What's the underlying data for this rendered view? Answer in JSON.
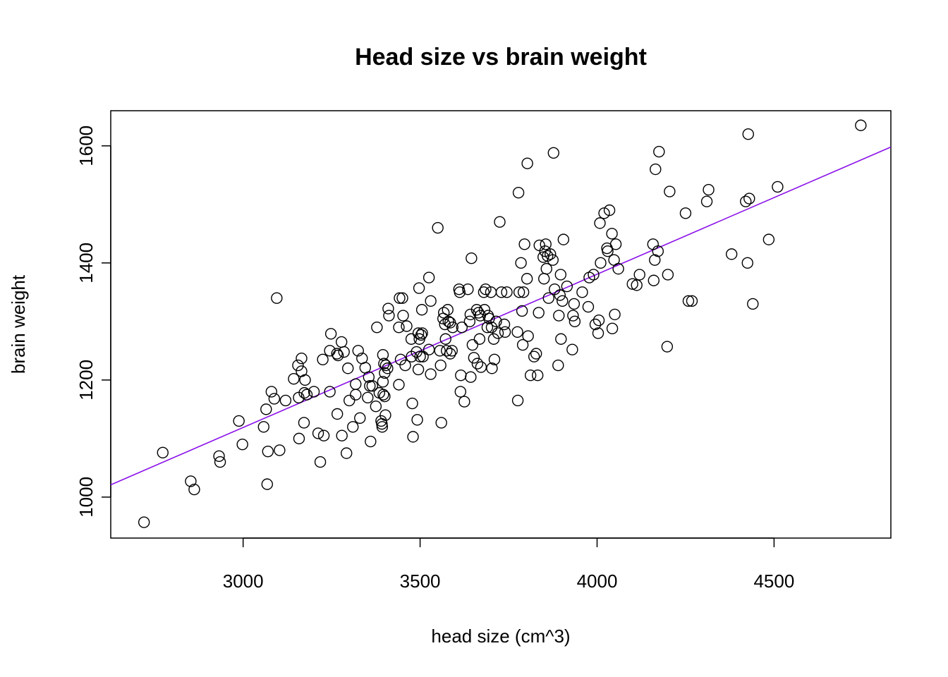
{
  "chart_data": {
    "type": "scatter",
    "title": "Head size vs brain weight",
    "xlabel": "head size (cm^3)",
    "ylabel": "brain weight",
    "xlim": [
      2626,
      4830
    ],
    "ylim": [
      930,
      1660
    ],
    "xticks": [
      3000,
      3500,
      4000,
      4500
    ],
    "yticks": [
      1000,
      1200,
      1400,
      1600
    ],
    "grid": false,
    "point_color": "#000000",
    "fit_line": {
      "color": "#8B10E8",
      "x": [
        2626,
        4830
      ],
      "y": [
        1021,
        1598
      ]
    },
    "points": [
      [
        2720,
        957
      ],
      [
        2773,
        1076
      ],
      [
        2852,
        1027
      ],
      [
        2862,
        1013
      ],
      [
        2932,
        1070
      ],
      [
        2935,
        1060
      ],
      [
        2988,
        1130
      ],
      [
        2998,
        1090
      ],
      [
        3058,
        1120
      ],
      [
        3065,
        1150
      ],
      [
        3068,
        1022
      ],
      [
        3070,
        1078
      ],
      [
        3080,
        1180
      ],
      [
        3088,
        1168
      ],
      [
        3095,
        1340
      ],
      [
        3103,
        1080
      ],
      [
        3120,
        1165
      ],
      [
        3143,
        1202
      ],
      [
        3155,
        1225
      ],
      [
        3157,
        1170
      ],
      [
        3158,
        1100
      ],
      [
        3165,
        1237
      ],
      [
        3165,
        1215
      ],
      [
        3172,
        1127
      ],
      [
        3173,
        1178
      ],
      [
        3175,
        1200
      ],
      [
        3180,
        1175
      ],
      [
        3200,
        1180
      ],
      [
        3212,
        1109
      ],
      [
        3218,
        1060
      ],
      [
        3225,
        1235
      ],
      [
        3228,
        1105
      ],
      [
        3245,
        1180
      ],
      [
        3245,
        1250
      ],
      [
        3248,
        1279
      ],
      [
        3265,
        1245
      ],
      [
        3266,
        1142
      ],
      [
        3268,
        1242
      ],
      [
        3278,
        1265
      ],
      [
        3279,
        1105
      ],
      [
        3285,
        1248
      ],
      [
        3292,
        1075
      ],
      [
        3296,
        1220
      ],
      [
        3300,
        1165
      ],
      [
        3310,
        1120
      ],
      [
        3318,
        1193
      ],
      [
        3318,
        1175
      ],
      [
        3325,
        1250
      ],
      [
        3330,
        1135
      ],
      [
        3336,
        1237
      ],
      [
        3345,
        1221
      ],
      [
        3352,
        1170
      ],
      [
        3355,
        1205
      ],
      [
        3358,
        1190
      ],
      [
        3360,
        1095
      ],
      [
        3365,
        1190
      ],
      [
        3375,
        1155
      ],
      [
        3378,
        1290
      ],
      [
        3385,
        1178
      ],
      [
        3390,
        1130
      ],
      [
        3392,
        1125
      ],
      [
        3393,
        1120
      ],
      [
        3395,
        1243
      ],
      [
        3395,
        1197
      ],
      [
        3396,
        1175
      ],
      [
        3398,
        1228
      ],
      [
        3400,
        1212
      ],
      [
        3400,
        1172
      ],
      [
        3402,
        1140
      ],
      [
        3403,
        1225
      ],
      [
        3408,
        1220
      ],
      [
        3410,
        1322
      ],
      [
        3412,
        1310
      ],
      [
        3440,
        1290
      ],
      [
        3440,
        1192
      ],
      [
        3442,
        1340
      ],
      [
        3445,
        1235
      ],
      [
        3450,
        1340
      ],
      [
        3452,
        1310
      ],
      [
        3458,
        1225
      ],
      [
        3462,
        1292
      ],
      [
        3475,
        1270
      ],
      [
        3476,
        1240
      ],
      [
        3478,
        1160
      ],
      [
        3480,
        1103
      ],
      [
        3490,
        1248
      ],
      [
        3492,
        1132
      ],
      [
        3495,
        1280
      ],
      [
        3495,
        1218
      ],
      [
        3497,
        1357
      ],
      [
        3498,
        1270
      ],
      [
        3500,
        1240
      ],
      [
        3503,
        1277
      ],
      [
        3505,
        1320
      ],
      [
        3506,
        1280
      ],
      [
        3508,
        1240
      ],
      [
        3525,
        1375
      ],
      [
        3525,
        1252
      ],
      [
        3530,
        1335
      ],
      [
        3530,
        1210
      ],
      [
        3550,
        1460
      ],
      [
        3556,
        1250
      ],
      [
        3558,
        1225
      ],
      [
        3560,
        1127
      ],
      [
        3565,
        1305
      ],
      [
        3567,
        1315
      ],
      [
        3570,
        1295
      ],
      [
        3572,
        1270
      ],
      [
        3575,
        1250
      ],
      [
        3578,
        1320
      ],
      [
        3580,
        1300
      ],
      [
        3585,
        1298
      ],
      [
        3585,
        1245
      ],
      [
        3590,
        1250
      ],
      [
        3592,
        1290
      ],
      [
        3610,
        1355
      ],
      [
        3612,
        1350
      ],
      [
        3614,
        1180
      ],
      [
        3615,
        1208
      ],
      [
        3618,
        1290
      ],
      [
        3625,
        1163
      ],
      [
        3635,
        1355
      ],
      [
        3640,
        1300
      ],
      [
        3642,
        1312
      ],
      [
        3643,
        1205
      ],
      [
        3645,
        1408
      ],
      [
        3648,
        1260
      ],
      [
        3652,
        1238
      ],
      [
        3660,
        1320
      ],
      [
        3662,
        1228
      ],
      [
        3665,
        1315
      ],
      [
        3668,
        1270
      ],
      [
        3670,
        1310
      ],
      [
        3672,
        1222
      ],
      [
        3680,
        1350
      ],
      [
        3682,
        1320
      ],
      [
        3685,
        1355
      ],
      [
        3690,
        1290
      ],
      [
        3692,
        1310
      ],
      [
        3695,
        1305
      ],
      [
        3700,
        1350
      ],
      [
        3702,
        1290
      ],
      [
        3703,
        1220
      ],
      [
        3708,
        1270
      ],
      [
        3710,
        1235
      ],
      [
        3715,
        1300
      ],
      [
        3720,
        1280
      ],
      [
        3725,
        1470
      ],
      [
        3730,
        1350
      ],
      [
        3738,
        1295
      ],
      [
        3740,
        1282
      ],
      [
        3745,
        1350
      ],
      [
        3775,
        1282
      ],
      [
        3776,
        1165
      ],
      [
        3778,
        1520
      ],
      [
        3780,
        1350
      ],
      [
        3785,
        1400
      ],
      [
        3788,
        1318
      ],
      [
        3790,
        1260
      ],
      [
        3792,
        1350
      ],
      [
        3795,
        1432
      ],
      [
        3802,
        1373
      ],
      [
        3803,
        1570
      ],
      [
        3805,
        1275
      ],
      [
        3812,
        1208
      ],
      [
        3822,
        1240
      ],
      [
        3828,
        1245
      ],
      [
        3832,
        1208
      ],
      [
        3835,
        1315
      ],
      [
        3837,
        1430
      ],
      [
        3848,
        1410
      ],
      [
        3850,
        1373
      ],
      [
        3853,
        1420
      ],
      [
        3855,
        1432
      ],
      [
        3857,
        1390
      ],
      [
        3860,
        1412
      ],
      [
        3863,
        1340
      ],
      [
        3868,
        1415
      ],
      [
        3875,
        1405
      ],
      [
        3877,
        1588
      ],
      [
        3880,
        1355
      ],
      [
        3890,
        1225
      ],
      [
        3892,
        1310
      ],
      [
        3895,
        1345
      ],
      [
        3897,
        1380
      ],
      [
        3898,
        1270
      ],
      [
        3902,
        1335
      ],
      [
        3905,
        1440
      ],
      [
        3915,
        1360
      ],
      [
        3930,
        1252
      ],
      [
        3932,
        1310
      ],
      [
        3935,
        1330
      ],
      [
        3937,
        1300
      ],
      [
        3958,
        1350
      ],
      [
        3975,
        1325
      ],
      [
        3978,
        1375
      ],
      [
        3990,
        1380
      ],
      [
        3995,
        1295
      ],
      [
        4003,
        1280
      ],
      [
        4005,
        1302
      ],
      [
        4008,
        1468
      ],
      [
        4010,
        1400
      ],
      [
        4020,
        1485
      ],
      [
        4028,
        1425
      ],
      [
        4030,
        1420
      ],
      [
        4035,
        1490
      ],
      [
        4042,
        1450
      ],
      [
        4043,
        1288
      ],
      [
        4048,
        1405
      ],
      [
        4050,
        1312
      ],
      [
        4053,
        1432
      ],
      [
        4060,
        1390
      ],
      [
        4100,
        1364
      ],
      [
        4112,
        1362
      ],
      [
        4120,
        1380
      ],
      [
        4158,
        1432
      ],
      [
        4160,
        1370
      ],
      [
        4163,
        1405
      ],
      [
        4165,
        1560
      ],
      [
        4172,
        1420
      ],
      [
        4175,
        1590
      ],
      [
        4198,
        1257
      ],
      [
        4200,
        1380
      ],
      [
        4205,
        1522
      ],
      [
        4250,
        1485
      ],
      [
        4258,
        1335
      ],
      [
        4268,
        1335
      ],
      [
        4310,
        1505
      ],
      [
        4315,
        1525
      ],
      [
        4380,
        1415
      ],
      [
        4420,
        1505
      ],
      [
        4425,
        1400
      ],
      [
        4427,
        1620
      ],
      [
        4430,
        1510
      ],
      [
        4440,
        1330
      ],
      [
        4485,
        1440
      ],
      [
        4510,
        1530
      ],
      [
        4745,
        1635
      ]
    ]
  }
}
